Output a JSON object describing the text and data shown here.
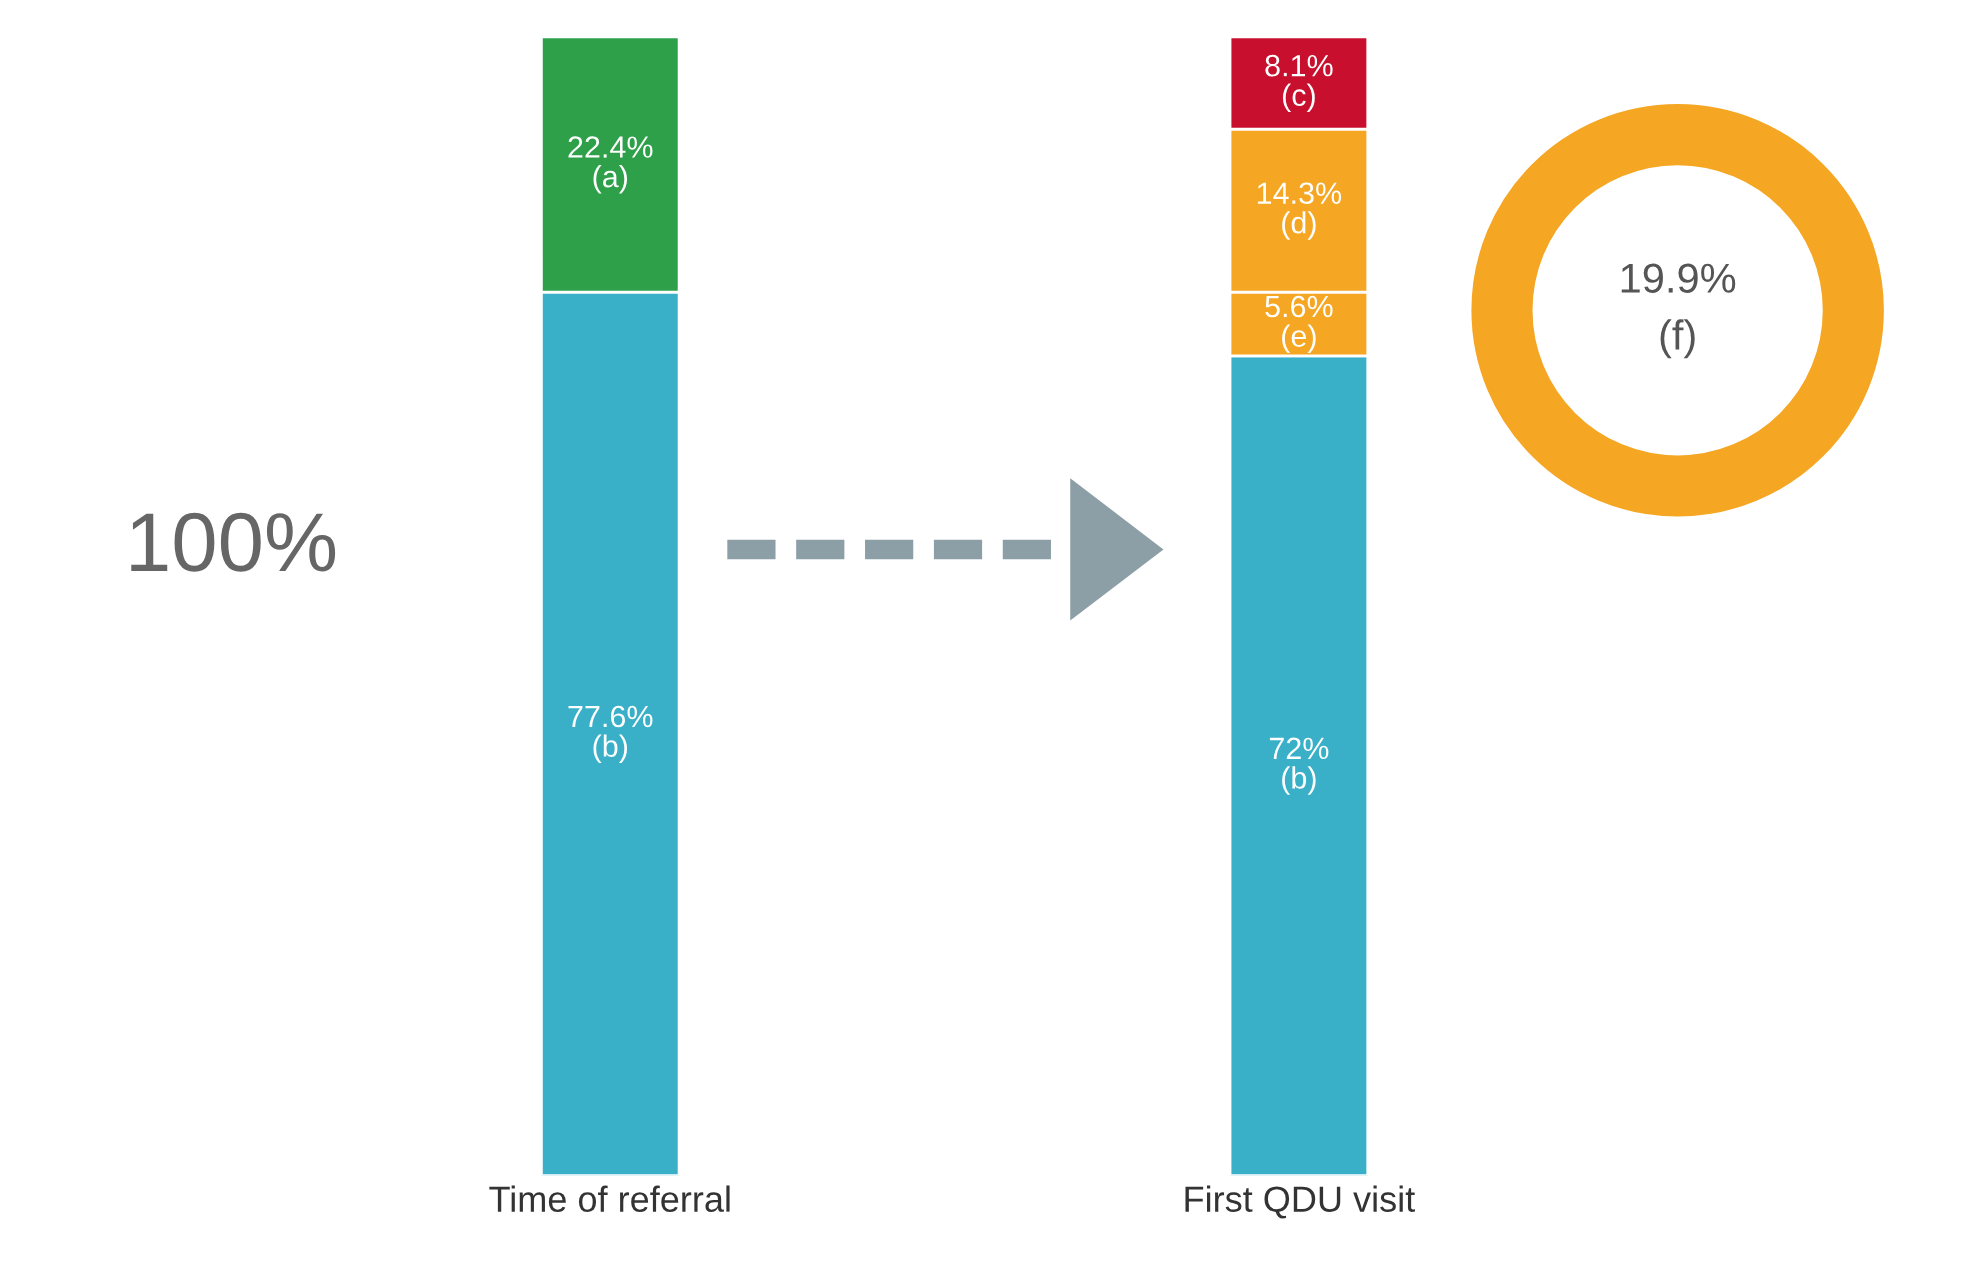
{
  "chart_data": {
    "type": "bar",
    "stacked": true,
    "categories": [
      "Time of referral",
      "First QDU visit"
    ],
    "series": [
      {
        "colors": [
          "#3ab0c8",
          "#3ab0c8"
        ],
        "values": [
          77.6,
          72
        ],
        "value_labels": [
          "77.6%\n(b)",
          "72%\n(b)"
        ]
      },
      {
        "colors": [
          "#2ea04a",
          "#f5a623"
        ],
        "values": [
          22.4,
          5.6
        ],
        "value_labels": [
          "22.4%\n(a)",
          "5.6%\n(e)"
        ]
      },
      {
        "colors": [
          null,
          "#f5a623"
        ],
        "values": [
          null,
          14.3
        ],
        "value_labels": [
          null,
          "14.3%\n(d)"
        ]
      },
      {
        "colors": [
          null,
          "#c8102e"
        ],
        "values": [
          null,
          8.1
        ],
        "value_labels": [
          null,
          "8.1%\n(c)"
        ]
      }
    ],
    "annotations": [
      "100%",
      "19.9%\n(f)"
    ],
    "grid": false,
    "legend": false,
    "tick_labels": "x"
  }
}
